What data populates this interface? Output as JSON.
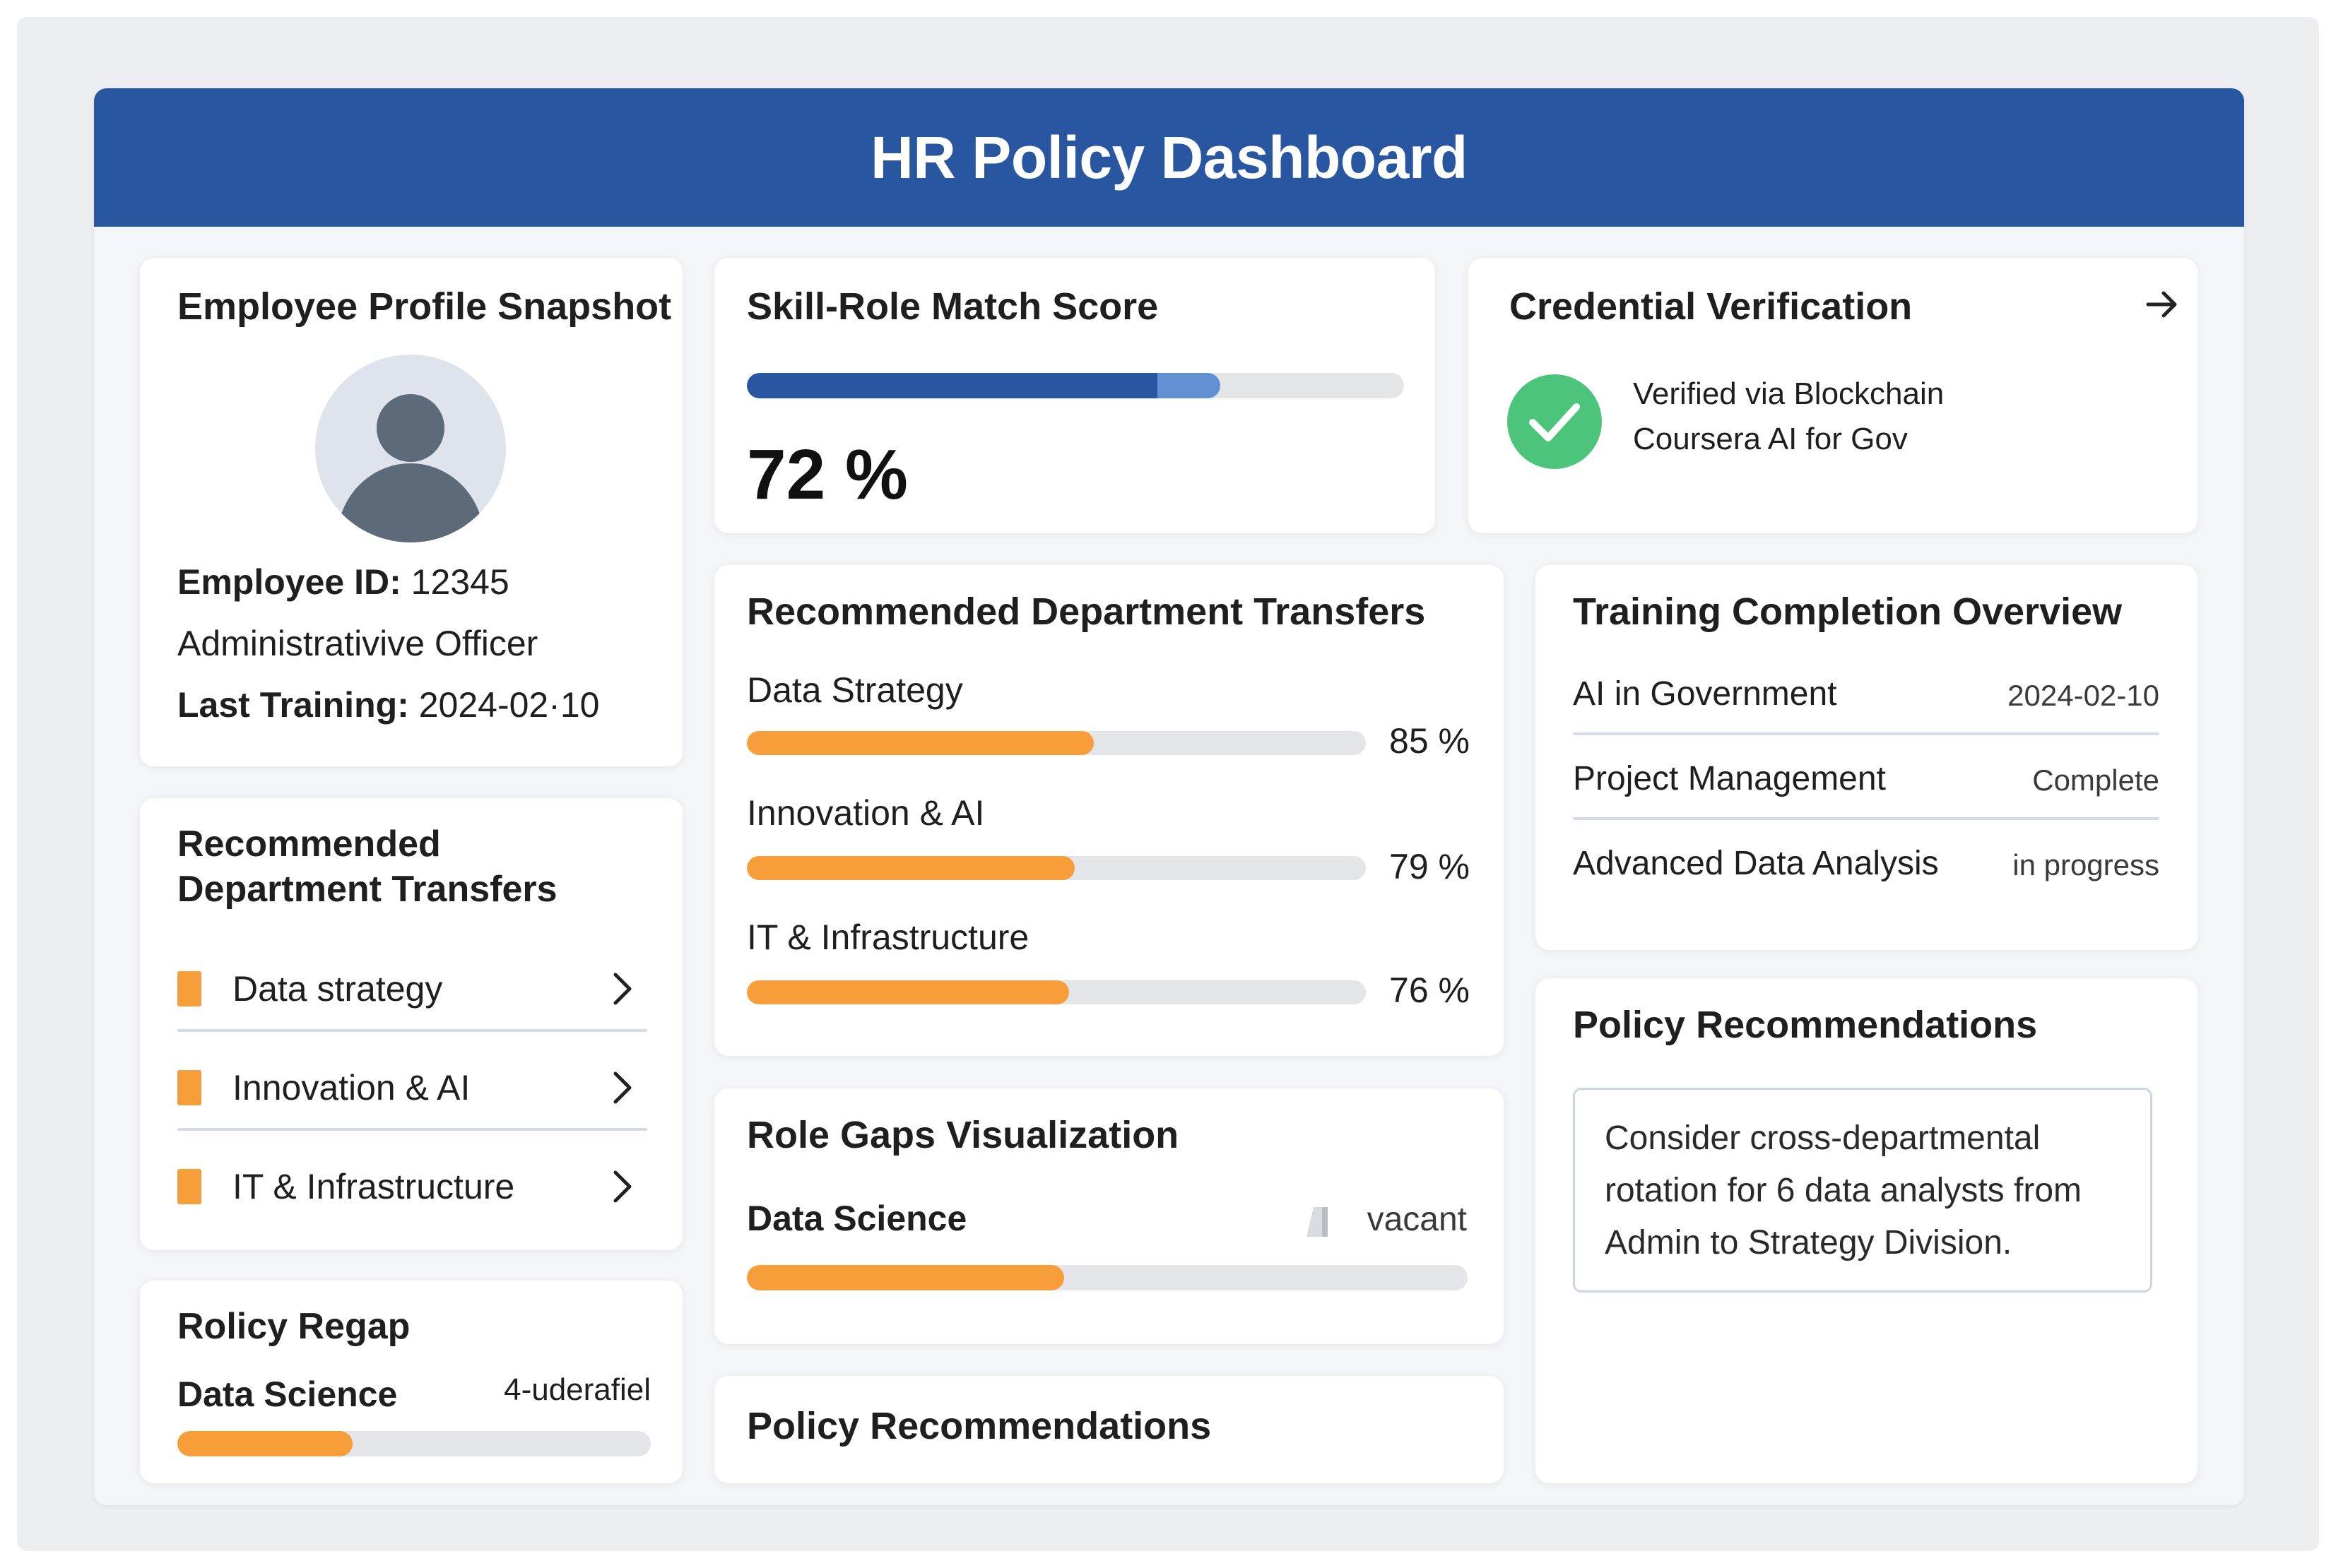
{
  "header": {
    "title": "HR Policy Dashboard"
  },
  "profile": {
    "title": "Employee Profile Snapshot",
    "employee_id_label": "Employee ID:",
    "employee_id": "12345",
    "role": "Administrativive Officer",
    "last_training_label": "Last Training:",
    "last_training": "2024-02·10"
  },
  "match_score": {
    "title": "Skill-Role Match Score",
    "value_text": "72 %",
    "value": 72
  },
  "credential": {
    "title": "Credential Verification",
    "line1": "Verified via Blockchain",
    "line2": "Coursera AI for Gov",
    "colors": {
      "check": "#4cc47a"
    }
  },
  "transfers_list": {
    "title_line1": "Recommended",
    "title_line2": "Department Transfers",
    "items": [
      {
        "label": "Data strategy"
      },
      {
        "label": "Innovation & AI"
      },
      {
        "label": "IT & Infrastructure"
      }
    ]
  },
  "transfers_bars": {
    "title": "Recommended Department Transfers",
    "items": [
      {
        "label": "Data Strategy",
        "value_text": "85 %",
        "fill_fraction": 0.56
      },
      {
        "label": "Innovation & AI",
        "value_text": "79 %",
        "fill_fraction": 0.53
      },
      {
        "label": "IT & Infrastructure",
        "value_text": "76 %",
        "fill_fraction": 0.52
      }
    ]
  },
  "training": {
    "title": "Training Completion Overview",
    "rows": [
      {
        "course": "AI in Government",
        "status": "2024-02-10"
      },
      {
        "course": "Project Management",
        "status": "Complete"
      },
      {
        "course": "Advanced Data Analysis",
        "status": "in progress"
      }
    ]
  },
  "role_gaps": {
    "title": "Role Gaps Visualization",
    "label": "Data Science",
    "status": "vacant",
    "fill_fraction": 0.44
  },
  "policy_regap": {
    "title": "Rolicy Regap",
    "label": "Data Science",
    "note": "4-uderafiel",
    "fill_fraction": 0.37
  },
  "policy_recs_center": {
    "title": "Policy Recommendations"
  },
  "policy_recs_right": {
    "title": "Policy Recommendations",
    "text": "Consider cross-departmental rotation for 6 data analysts from Admin to Strategy Division."
  },
  "colors": {
    "banner": "#2856a0",
    "accent_blue": "#2856a0",
    "accent_blue_light": "#6191d3",
    "accent_orange": "#f79e3b",
    "avatar_bg": "#dfe4ec",
    "avatar_fg": "#5d6a79"
  }
}
